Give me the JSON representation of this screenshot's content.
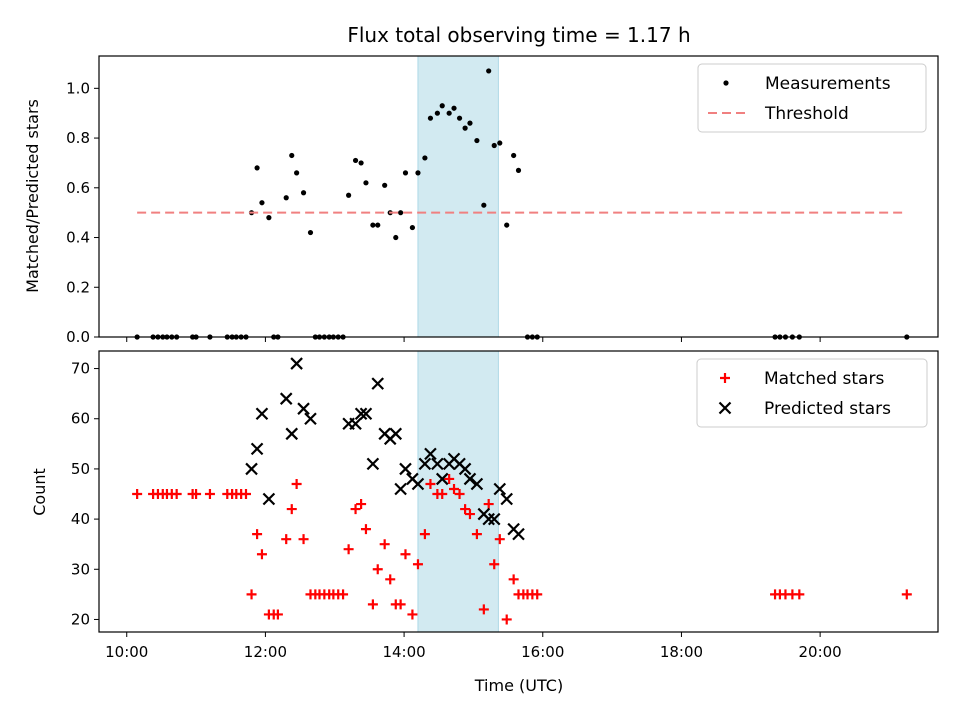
{
  "chart_data": {
    "type": "scatter",
    "title": "Flux total observing time = 1.17 h",
    "xlabel": "Time (UTC)",
    "x_unit": "hours UTC",
    "xlim": [
      9.6,
      21.7
    ],
    "x_ticks": [
      {
        "value": 10,
        "label": "10:00"
      },
      {
        "value": 12,
        "label": "12:00"
      },
      {
        "value": 14,
        "label": "14:00"
      },
      {
        "value": 16,
        "label": "16:00"
      },
      {
        "value": 18,
        "label": "18:00"
      },
      {
        "value": 20,
        "label": "20:00"
      }
    ],
    "shaded_region": {
      "x": [
        14.2,
        15.36
      ],
      "color": "#add8e6"
    },
    "panels": [
      {
        "ylabel": "Matched/Predicted stars",
        "ylim": [
          0,
          1.13
        ],
        "y_ticks": [
          {
            "value": 0,
            "label": "0.0"
          },
          {
            "value": 0.2,
            "label": "0.2"
          },
          {
            "value": 0.4,
            "label": "0.4"
          },
          {
            "value": 0.6,
            "label": "0.6"
          },
          {
            "value": 0.8,
            "label": "0.8"
          },
          {
            "value": 1.0,
            "label": "1.0"
          }
        ],
        "legend_position": "top-right",
        "series": [
          {
            "name": "Measurements",
            "marker": "dot",
            "color": "#000000",
            "x": [
              10.15,
              10.38,
              10.45,
              10.52,
              10.58,
              10.65,
              10.72,
              10.95,
              11.0,
              11.2,
              11.45,
              11.52,
              11.58,
              11.65,
              11.72,
              12.12,
              12.18,
              12.72,
              12.78,
              12.85,
              12.92,
              12.98,
              13.05,
              13.12,
              15.78,
              15.85,
              15.92,
              19.35,
              19.42,
              19.5,
              19.6,
              19.7,
              21.25,
              11.8,
              11.88,
              11.95,
              12.05,
              12.3,
              12.38,
              12.45,
              12.55,
              12.65,
              13.2,
              13.3,
              13.38,
              13.45,
              13.55,
              13.62,
              13.72,
              13.8,
              13.88,
              13.95,
              14.02,
              14.12,
              14.2,
              14.3,
              14.38,
              14.48,
              14.55,
              14.65,
              14.72,
              14.8,
              14.88,
              14.95,
              15.05,
              15.15,
              15.22,
              15.3,
              15.38,
              15.48,
              15.58,
              15.65
            ],
            "y": [
              0,
              0,
              0,
              0,
              0,
              0,
              0,
              0,
              0,
              0,
              0,
              0,
              0,
              0,
              0,
              0,
              0,
              0,
              0,
              0,
              0,
              0,
              0,
              0,
              0,
              0,
              0,
              0,
              0,
              0,
              0,
              0,
              0,
              0.5,
              0.68,
              0.54,
              0.48,
              0.56,
              0.73,
              0.66,
              0.58,
              0.42,
              0.57,
              0.71,
              0.7,
              0.62,
              0.45,
              0.45,
              0.61,
              0.5,
              0.4,
              0.5,
              0.66,
              0.44,
              0.66,
              0.72,
              0.88,
              0.9,
              0.93,
              0.9,
              0.92,
              0.88,
              0.84,
              0.86,
              0.79,
              0.53,
              1.07,
              0.77,
              0.78,
              0.45,
              0.73,
              0.67
            ]
          },
          {
            "name": "Threshold",
            "style": "dashed",
            "color": "#f08080",
            "x": [
              10.15,
              21.2
            ],
            "y": [
              0.5,
              0.5
            ]
          }
        ]
      },
      {
        "ylabel": "Count",
        "ylim": [
          17.5,
          73.5
        ],
        "y_ticks": [
          {
            "value": 20,
            "label": "20"
          },
          {
            "value": 30,
            "label": "30"
          },
          {
            "value": 40,
            "label": "40"
          },
          {
            "value": 50,
            "label": "50"
          },
          {
            "value": 60,
            "label": "60"
          },
          {
            "value": 70,
            "label": "70"
          }
        ],
        "legend_position": "top-right",
        "series": [
          {
            "name": "Matched stars",
            "marker": "plus",
            "color": "#ff0000",
            "x": [
              10.15,
              10.38,
              10.45,
              10.52,
              10.58,
              10.65,
              10.72,
              10.95,
              11.0,
              11.2,
              11.45,
              11.52,
              11.58,
              11.65,
              11.72,
              11.8,
              11.88,
              11.95,
              12.05,
              12.12,
              12.18,
              12.3,
              12.38,
              12.45,
              12.55,
              12.65,
              12.72,
              12.78,
              12.85,
              12.92,
              12.98,
              13.05,
              13.12,
              13.2,
              13.3,
              13.38,
              13.45,
              13.55,
              13.62,
              13.72,
              13.8,
              13.88,
              13.95,
              14.02,
              14.12,
              14.2,
              14.3,
              14.38,
              14.48,
              14.55,
              14.65,
              14.72,
              14.8,
              14.88,
              14.95,
              15.05,
              15.15,
              15.22,
              15.3,
              15.38,
              15.48,
              15.58,
              15.65,
              15.72,
              15.78,
              15.85,
              15.92,
              19.35,
              19.42,
              19.5,
              19.6,
              19.7,
              21.25
            ],
            "y": [
              45,
              45,
              45,
              45,
              45,
              45,
              45,
              45,
              45,
              45,
              45,
              45,
              45,
              45,
              45,
              25,
              37,
              33,
              21,
              21,
              21,
              36,
              42,
              47,
              36,
              25,
              25,
              25,
              25,
              25,
              25,
              25,
              25,
              34,
              42,
              43,
              38,
              23,
              30,
              35,
              28,
              23,
              23,
              33,
              21,
              31,
              37,
              47,
              45,
              45,
              48,
              46,
              45,
              42,
              41,
              37,
              22,
              43,
              31,
              36,
              20,
              28,
              25,
              25,
              25,
              25,
              25,
              25,
              25,
              25,
              25,
              25,
              25
            ]
          },
          {
            "name": "Predicted stars",
            "marker": "x",
            "color": "#000000",
            "x": [
              11.8,
              11.88,
              11.95,
              12.05,
              12.3,
              12.38,
              12.45,
              12.55,
              12.65,
              13.2,
              13.3,
              13.38,
              13.45,
              13.55,
              13.62,
              13.72,
              13.8,
              13.88,
              13.95,
              14.02,
              14.12,
              14.2,
              14.3,
              14.38,
              14.48,
              14.55,
              14.65,
              14.72,
              14.8,
              14.88,
              14.95,
              15.05,
              15.15,
              15.22,
              15.3,
              15.38,
              15.48,
              15.58,
              15.65
            ],
            "y": [
              50,
              54,
              61,
              44,
              64,
              57,
              71,
              62,
              60,
              59,
              59,
              61,
              61,
              51,
              67,
              57,
              56,
              57,
              46,
              50,
              48,
              47,
              51,
              53,
              51,
              48,
              51,
              52,
              51,
              50,
              48,
              47,
              41,
              40,
              40,
              46,
              44,
              38,
              37
            ]
          }
        ]
      }
    ]
  }
}
